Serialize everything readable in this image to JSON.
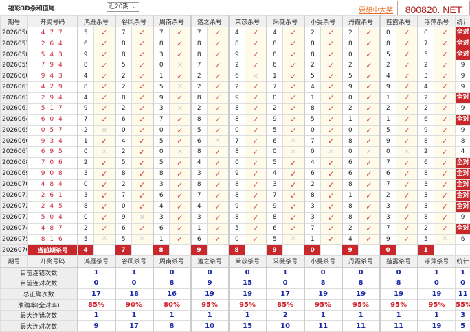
{
  "header": {
    "title": "福彩3D杀和值尾",
    "period_select": "近20期",
    "link": "要想中大奖",
    "watermark": "800820. NET"
  },
  "columns": {
    "period": "期号",
    "number": "开奖号码",
    "kills": [
      "鸿雁杀号",
      "谷风杀号",
      "周南杀号",
      "落之杀号",
      "茉苡杀号",
      "采薇杀号",
      "小旻杀号",
      "丹霞杀号",
      "薤露杀号",
      "浮萍杀号"
    ],
    "stat": "统计"
  },
  "marks": {
    "hit": "✓",
    "miss": "✕"
  },
  "colors": {
    "accent": "#c8282c",
    "number": "#c8283a",
    "stat_value": "#1c2aa8"
  },
  "rows": [
    {
      "period": "2026056",
      "number": "477",
      "kills": [
        [
          5,
          1
        ],
        [
          7,
          1
        ],
        [
          7,
          1
        ],
        [
          7,
          1
        ],
        [
          4,
          1
        ],
        [
          4,
          1
        ],
        [
          2,
          1
        ],
        [
          2,
          1
        ],
        [
          0,
          1
        ],
        [
          0,
          1
        ]
      ],
      "stat": "全对"
    },
    {
      "period": "2026057",
      "number": "264",
      "kills": [
        [
          6,
          1
        ],
        [
          8,
          1
        ],
        [
          8,
          1
        ],
        [
          8,
          1
        ],
        [
          8,
          1
        ],
        [
          8,
          1
        ],
        [
          8,
          1
        ],
        [
          8,
          1
        ],
        [
          8,
          1
        ],
        [
          7,
          1
        ]
      ],
      "stat": "全对"
    },
    {
      "period": "2026058",
      "number": "543",
      "kills": [
        [
          9,
          1
        ],
        [
          8,
          1
        ],
        [
          3,
          1
        ],
        [
          8,
          1
        ],
        [
          9,
          1
        ],
        [
          8,
          1
        ],
        [
          8,
          1
        ],
        [
          0,
          1
        ],
        [
          5,
          1
        ],
        [
          5,
          1
        ]
      ],
      "stat": "全对"
    },
    {
      "period": "2026059",
      "number": "794",
      "kills": [
        [
          8,
          1
        ],
        [
          5,
          1
        ],
        [
          0,
          0
        ],
        [
          7,
          1
        ],
        [
          2,
          1
        ],
        [
          6,
          1
        ],
        [
          2,
          1
        ],
        [
          2,
          1
        ],
        [
          2,
          1
        ],
        [
          2,
          1
        ]
      ],
      "stat": "9"
    },
    {
      "period": "2026060",
      "number": "943",
      "kills": [
        [
          4,
          1
        ],
        [
          2,
          1
        ],
        [
          1,
          1
        ],
        [
          2,
          1
        ],
        [
          6,
          0
        ],
        [
          1,
          1
        ],
        [
          5,
          1
        ],
        [
          5,
          1
        ],
        [
          4,
          1
        ],
        [
          3,
          1
        ]
      ],
      "stat": "9"
    },
    {
      "period": "2026061",
      "number": "429",
      "kills": [
        [
          8,
          1
        ],
        [
          2,
          1
        ],
        [
          5,
          0
        ],
        [
          2,
          1
        ],
        [
          2,
          1
        ],
        [
          7,
          1
        ],
        [
          4,
          1
        ],
        [
          9,
          1
        ],
        [
          9,
          1
        ],
        [
          4,
          1
        ]
      ],
      "stat": "9"
    },
    {
      "period": "2026062",
      "number": "294",
      "kills": [
        [
          4,
          1
        ],
        [
          8,
          1
        ],
        [
          9,
          1
        ],
        [
          8,
          1
        ],
        [
          9,
          1
        ],
        [
          0,
          1
        ],
        [
          1,
          1
        ],
        [
          0,
          1
        ],
        [
          1,
          1
        ],
        [
          2,
          1
        ]
      ],
      "stat": "全对"
    },
    {
      "period": "2026063",
      "number": "517",
      "kills": [
        [
          9,
          1
        ],
        [
          2,
          1
        ],
        [
          3,
          0
        ],
        [
          2,
          1
        ],
        [
          8,
          1
        ],
        [
          2,
          1
        ],
        [
          8,
          1
        ],
        [
          2,
          1
        ],
        [
          2,
          1
        ],
        [
          2,
          1
        ]
      ],
      "stat": "9"
    },
    {
      "period": "2026064",
      "number": "604",
      "kills": [
        [
          7,
          1
        ],
        [
          6,
          1
        ],
        [
          7,
          1
        ],
        [
          8,
          1
        ],
        [
          8,
          1
        ],
        [
          9,
          1
        ],
        [
          5,
          1
        ],
        [
          1,
          1
        ],
        [
          1,
          1
        ],
        [
          6,
          1
        ]
      ],
      "stat": "全对"
    },
    {
      "period": "2026065",
      "number": "057",
      "kills": [
        [
          2,
          0
        ],
        [
          0,
          1
        ],
        [
          0,
          1
        ],
        [
          5,
          1
        ],
        [
          0,
          1
        ],
        [
          5,
          1
        ],
        [
          0,
          1
        ],
        [
          0,
          1
        ],
        [
          5,
          1
        ],
        [
          9,
          1
        ]
      ],
      "stat": "9"
    },
    {
      "period": "2026066",
      "number": "934",
      "kills": [
        [
          1,
          1
        ],
        [
          4,
          1
        ],
        [
          5,
          1
        ],
        [
          6,
          0
        ],
        [
          7,
          1
        ],
        [
          6,
          0
        ],
        [
          7,
          1
        ],
        [
          8,
          1
        ],
        [
          9,
          1
        ],
        [
          8,
          1
        ]
      ],
      "stat": "8"
    },
    {
      "period": "2026067",
      "number": "695",
      "kills": [
        [
          0,
          0
        ],
        [
          2,
          1
        ],
        [
          0,
          0
        ],
        [
          8,
          1
        ],
        [
          8,
          1
        ],
        [
          0,
          0
        ],
        [
          0,
          0
        ],
        [
          0,
          0
        ],
        [
          0,
          0
        ],
        [
          2,
          1
        ]
      ],
      "stat": "4"
    },
    {
      "period": "2026068",
      "number": "706",
      "kills": [
        [
          2,
          1
        ],
        [
          5,
          1
        ],
        [
          5,
          1
        ],
        [
          4,
          1
        ],
        [
          0,
          1
        ],
        [
          5,
          1
        ],
        [
          4,
          1
        ],
        [
          6,
          1
        ],
        [
          7,
          1
        ],
        [
          6,
          1
        ]
      ],
      "stat": "全对"
    },
    {
      "period": "2026069",
      "number": "908",
      "kills": [
        [
          3,
          1
        ],
        [
          8,
          1
        ],
        [
          8,
          1
        ],
        [
          3,
          1
        ],
        [
          9,
          1
        ],
        [
          4,
          1
        ],
        [
          6,
          1
        ],
        [
          6,
          1
        ],
        [
          6,
          1
        ],
        [
          8,
          1
        ]
      ],
      "stat": "全对"
    },
    {
      "period": "2026070",
      "number": "484",
      "kills": [
        [
          0,
          1
        ],
        [
          2,
          1
        ],
        [
          3,
          1
        ],
        [
          8,
          1
        ],
        [
          8,
          1
        ],
        [
          3,
          1
        ],
        [
          2,
          1
        ],
        [
          8,
          1
        ],
        [
          7,
          1
        ],
        [
          3,
          1
        ]
      ],
      "stat": "全对"
    },
    {
      "period": "2026071",
      "number": "261",
      "kills": [
        [
          3,
          1
        ],
        [
          7,
          1
        ],
        [
          6,
          1
        ],
        [
          7,
          1
        ],
        [
          8,
          1
        ],
        [
          7,
          1
        ],
        [
          8,
          1
        ],
        [
          1,
          1
        ],
        [
          2,
          1
        ],
        [
          3,
          1
        ]
      ],
      "stat": "全对"
    },
    {
      "period": "2026072",
      "number": "245",
      "kills": [
        [
          8,
          1
        ],
        [
          0,
          1
        ],
        [
          4,
          1
        ],
        [
          4,
          1
        ],
        [
          9,
          1
        ],
        [
          9,
          1
        ],
        [
          3,
          1
        ],
        [
          8,
          1
        ],
        [
          3,
          1
        ],
        [
          3,
          1
        ]
      ],
      "stat": "全对"
    },
    {
      "period": "2026073",
      "number": "504",
      "kills": [
        [
          0,
          1
        ],
        [
          9,
          0
        ],
        [
          3,
          1
        ],
        [
          3,
          1
        ],
        [
          8,
          1
        ],
        [
          8,
          1
        ],
        [
          3,
          1
        ],
        [
          8,
          1
        ],
        [
          3,
          1
        ],
        [
          8,
          1
        ]
      ],
      "stat": "9"
    },
    {
      "period": "2026074",
      "number": "487",
      "kills": [
        [
          2,
          1
        ],
        [
          6,
          1
        ],
        [
          6,
          1
        ],
        [
          1,
          1
        ],
        [
          5,
          1
        ],
        [
          6,
          1
        ],
        [
          7,
          1
        ],
        [
          2,
          1
        ],
        [
          7,
          1
        ],
        [
          2,
          1
        ]
      ],
      "stat": "全对"
    },
    {
      "period": "2026075",
      "number": "816",
      "kills": [
        [
          5,
          0
        ],
        [
          5,
          0
        ],
        [
          1,
          1
        ],
        [
          6,
          1
        ],
        [
          0,
          1
        ],
        [
          5,
          0
        ],
        [
          1,
          1
        ],
        [
          4,
          1
        ],
        [
          9,
          1
        ],
        [
          5,
          0
        ]
      ],
      "stat": "6"
    }
  ],
  "current": {
    "period": "2026076",
    "label": "当前期杀号",
    "kills": [
      "4",
      "7",
      "8",
      "9",
      "8",
      "9",
      "0",
      "9",
      "0",
      "1"
    ]
  },
  "stats": [
    {
      "label": "目前连错次数",
      "values": [
        "1",
        "1",
        "0",
        "0",
        "0",
        "1",
        "0",
        "0",
        "0",
        "1"
      ],
      "stat": "1"
    },
    {
      "label": "目前连对次数",
      "values": [
        "0",
        "0",
        "8",
        "9",
        "15",
        "0",
        "8",
        "8",
        "8",
        "0"
      ],
      "stat": "0"
    },
    {
      "label": "总正确次数",
      "values": [
        "17",
        "18",
        "16",
        "19",
        "19",
        "17",
        "19",
        "19",
        "19",
        "19"
      ],
      "stat": "11"
    },
    {
      "label": "准确率(全对率)",
      "values": [
        "85%",
        "90%",
        "80%",
        "95%",
        "95%",
        "85%",
        "95%",
        "95%",
        "95%",
        "95%"
      ],
      "stat": "55%",
      "pct": true
    },
    {
      "label": "最大连错次数",
      "values": [
        "1",
        "1",
        "1",
        "1",
        "1",
        "2",
        "1",
        "1",
        "1",
        "1"
      ],
      "stat": "3"
    },
    {
      "label": "最大连对次数",
      "values": [
        "9",
        "17",
        "8",
        "10",
        "15",
        "10",
        "11",
        "11",
        "11",
        "19"
      ],
      "stat": "5"
    }
  ]
}
